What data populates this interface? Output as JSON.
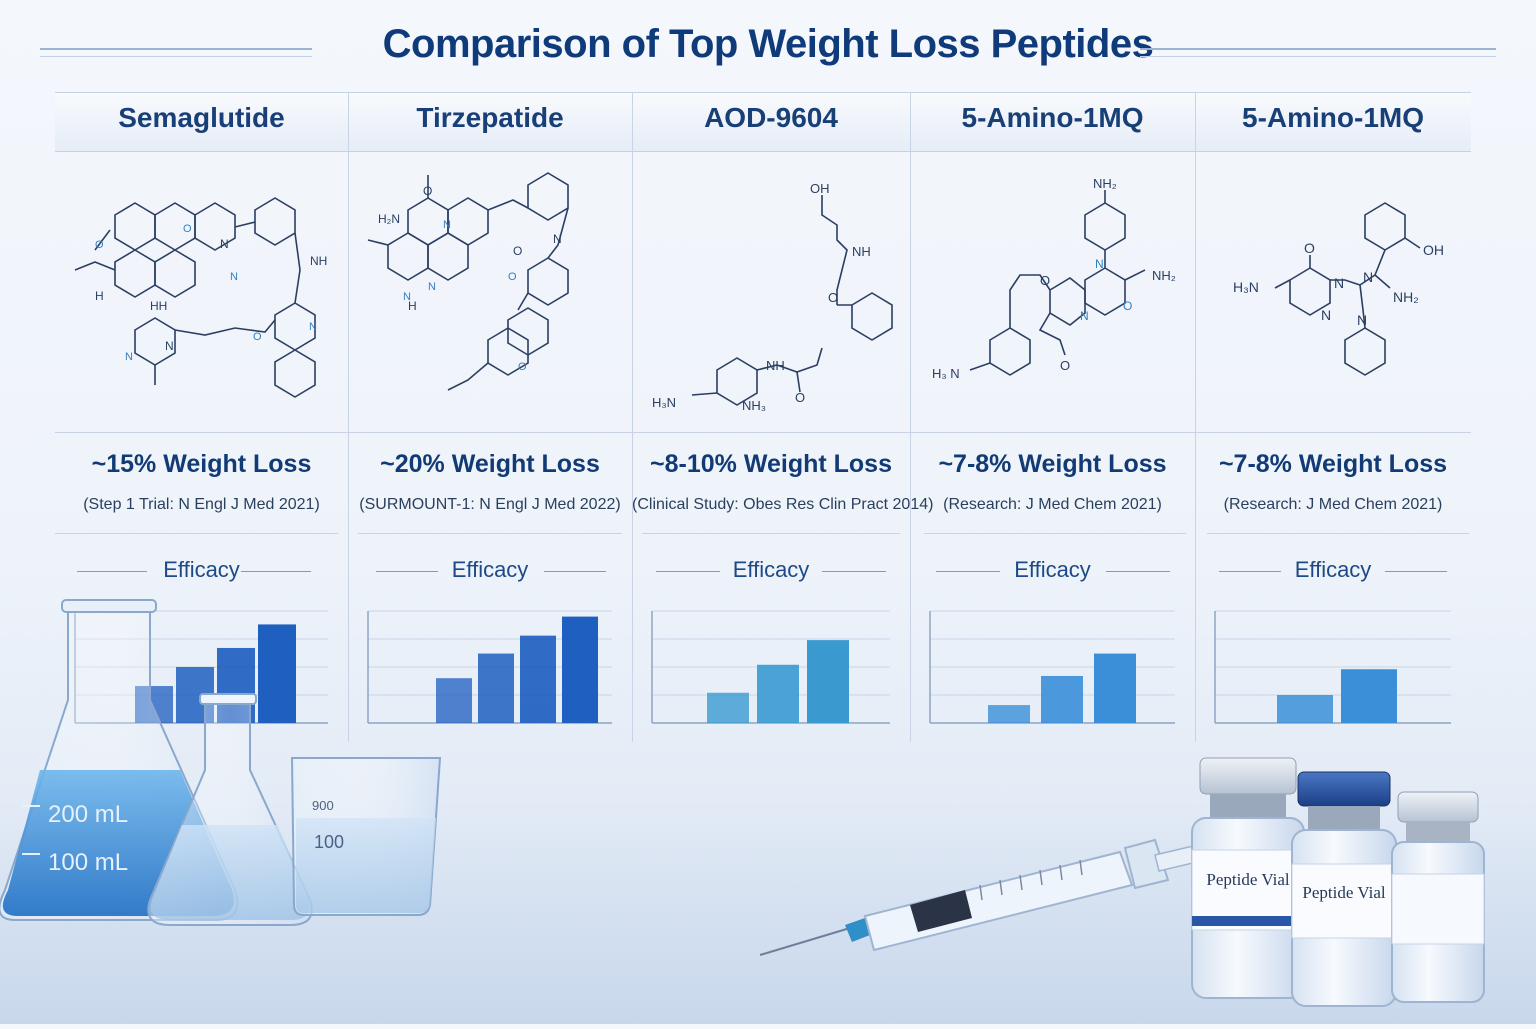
{
  "title": "Comparison of Top Weight Loss Peptides",
  "columns": [
    {
      "name": "Semaglutide",
      "loss": "~15% Weight Loss",
      "citation": "(Step 1 Trial: N Engl J Med 2021)",
      "efficacy_label": "Efficacy",
      "bars": [
        0.33,
        0.5,
        0.67,
        0.88
      ],
      "color": "#1f5fc0"
    },
    {
      "name": "Tirzepatide",
      "loss": "~20% Weight Loss",
      "citation": "(SURMOUNT-1: N Engl J Med 2022)",
      "efficacy_label": "Efficacy",
      "bars": [
        0.4,
        0.62,
        0.78,
        0.95
      ],
      "color": "#1f5fc0"
    },
    {
      "name": "AOD-9604",
      "loss": "~8-10% Weight Loss",
      "citation": "(Clinical Study: Obes Res Clin Pract 2014)",
      "efficacy_label": "Efficacy",
      "bars": [
        0.27,
        0.52,
        0.74
      ],
      "color": "#3a9ad0"
    },
    {
      "name": "5-Amino-1MQ",
      "loss": "~7-8% Weight Loss",
      "citation": "(Research: J Med Chem 2021)",
      "efficacy_label": "Efficacy",
      "bars": [
        0.16,
        0.42,
        0.62
      ],
      "color": "#3a8fd8"
    },
    {
      "name": "5-Amino-1MQ",
      "loss": "~7-8% Weight Loss",
      "citation": "(Research: J Med Chem 2021)",
      "efficacy_label": "Efficacy",
      "bars": [
        0.25,
        0.48
      ],
      "color": "#3a8fd8"
    }
  ],
  "chart_data": [
    {
      "type": "bar",
      "title": "Efficacy",
      "series_of": "Semaglutide",
      "values": [
        0.33,
        0.5,
        0.67,
        0.88
      ]
    },
    {
      "type": "bar",
      "title": "Efficacy",
      "series_of": "Tirzepatide",
      "values": [
        0.4,
        0.62,
        0.78,
        0.95
      ]
    },
    {
      "type": "bar",
      "title": "Efficacy",
      "series_of": "AOD-9604",
      "values": [
        0.27,
        0.52,
        0.74
      ]
    },
    {
      "type": "bar",
      "title": "Efficacy",
      "series_of": "5-Amino-1MQ",
      "values": [
        0.16,
        0.42,
        0.62
      ]
    },
    {
      "type": "bar",
      "title": "Efficacy",
      "series_of": "5-Amino-1MQ",
      "values": [
        0.25,
        0.48
      ]
    }
  ],
  "molecule_labels": {
    "c3_top": "OH",
    "c3_nh": "NH",
    "c3_bottom_left": "H₃N",
    "c3_bottom_right": "NH₃",
    "c4_top": "NH₂",
    "c4_right": "NH₂",
    "c4_left": "H₃ N",
    "c5_right": "OH",
    "c5_left": "H₃N",
    "c5_nh2": "NH₂"
  },
  "lab": {
    "flask_200": "200 mL",
    "flask_100": "100 mL",
    "beaker_100": "100",
    "beaker_900": "900"
  },
  "vials": {
    "vial1_label": "Peptide Vial",
    "vial2_label": "Peptide Vial"
  }
}
